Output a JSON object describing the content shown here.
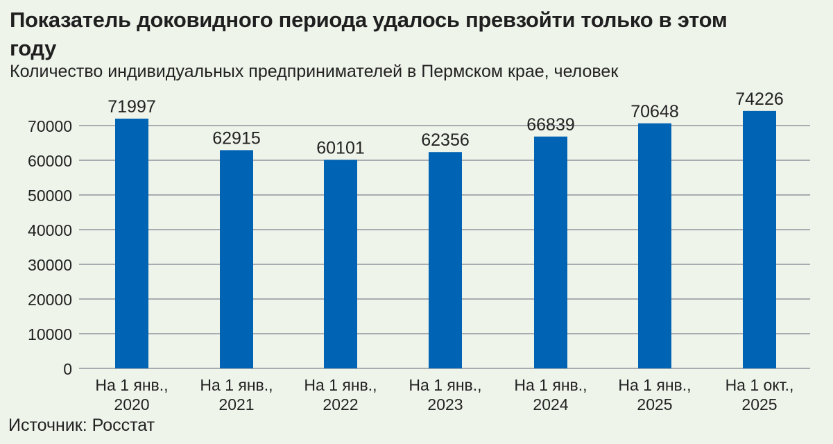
{
  "header": {
    "title": "Показатель доковидного периода удалось превзойти только в этом году",
    "subtitle": "Количество индивидуальных предпринимателей в Пермском крае, человек"
  },
  "footer": {
    "source": "Источник: Росстат"
  },
  "colors": {
    "bar": "#0063b4",
    "grid": "#a7acb0",
    "background": "#eef4ea"
  },
  "chart_data": {
    "type": "bar",
    "categories": [
      [
        "На 1 янв.,",
        "2020"
      ],
      [
        "На 1 янв.,",
        "2021"
      ],
      [
        "На 1 янв.,",
        "2022"
      ],
      [
        "На 1 янв.,",
        "2023"
      ],
      [
        "На 1 янв.,",
        "2024"
      ],
      [
        "На 1 янв.,",
        "2025"
      ],
      [
        "На 1 окт.,",
        "2025"
      ]
    ],
    "values": [
      71997,
      62915,
      60101,
      62356,
      66839,
      70648,
      74226
    ],
    "data_labels": [
      "71997",
      "62915",
      "60101",
      "62356",
      "66839",
      "70648",
      "74226"
    ],
    "yticks": [
      0,
      10000,
      20000,
      30000,
      40000,
      50000,
      60000,
      70000
    ],
    "ytick_labels": [
      "0",
      "10000",
      "20000",
      "30000",
      "40000",
      "50000",
      "60000",
      "70000"
    ],
    "ylim": [
      0,
      75000
    ],
    "grid": true,
    "legend": false
  }
}
